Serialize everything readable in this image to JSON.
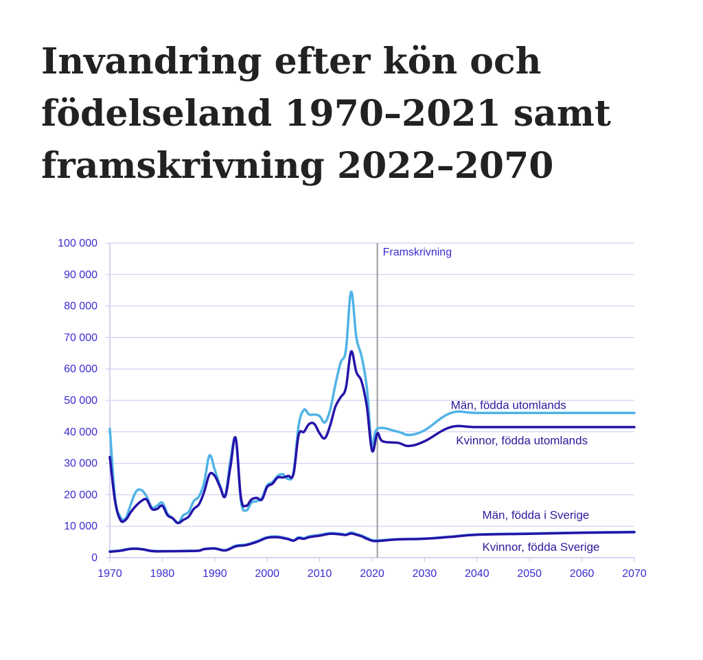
{
  "title_lines": [
    "Invandring efter kön och",
    "födelseland 1970–2021 samt",
    "framskrivning 2022–2070"
  ],
  "colors": {
    "light_blue": "#4fb3e6",
    "dark_blue": "#2414a8",
    "grid": "#c9c3ee",
    "axis_text": "#3a2bd0",
    "divider": "#9a9a9a"
  },
  "chart_data": {
    "type": "line",
    "title": "Invandring efter kön och födelseland 1970–2021 samt framskrivning 2022–2070",
    "xlabel": "",
    "ylabel": "",
    "xlim": [
      1970,
      2070
    ],
    "ylim": [
      0,
      100000
    ],
    "x_ticks": [
      "1970",
      "1980",
      "1990",
      "2000",
      "2010",
      "2020",
      "2030",
      "2040",
      "2050",
      "2060",
      "2070"
    ],
    "y_ticks": [
      "0",
      "10 000",
      "20 000",
      "30 000",
      "40 000",
      "50 000",
      "60 000",
      "70 000",
      "80 000",
      "90 000",
      "100 000"
    ],
    "grid": "horizontal",
    "projection_start": 2021,
    "projection_label": "Framskrivning",
    "series": [
      {
        "name": "Män, födda utomlands",
        "color": "light_blue",
        "points": [
          [
            1970,
            41000
          ],
          [
            1971,
            19000
          ],
          [
            1972,
            13000
          ],
          [
            1973,
            12500
          ],
          [
            1974,
            17000
          ],
          [
            1975,
            21000
          ],
          [
            1976,
            21500
          ],
          [
            1977,
            19500
          ],
          [
            1978,
            16000
          ],
          [
            1979,
            16500
          ],
          [
            1980,
            17500
          ],
          [
            1981,
            14000
          ],
          [
            1982,
            12500
          ],
          [
            1983,
            11000
          ],
          [
            1984,
            13500
          ],
          [
            1985,
            14500
          ],
          [
            1986,
            18000
          ],
          [
            1987,
            19500
          ],
          [
            1988,
            24000
          ],
          [
            1989,
            32500
          ],
          [
            1990,
            28000
          ],
          [
            1991,
            23000
          ],
          [
            1992,
            20000
          ],
          [
            1993,
            31000
          ],
          [
            1994,
            37500
          ],
          [
            1995,
            18000
          ],
          [
            1996,
            15000
          ],
          [
            1997,
            17500
          ],
          [
            1998,
            18000
          ],
          [
            1999,
            19000
          ],
          [
            2000,
            23000
          ],
          [
            2001,
            24000
          ],
          [
            2002,
            26000
          ],
          [
            2003,
            26500
          ],
          [
            2004,
            25000
          ],
          [
            2005,
            27000
          ],
          [
            2006,
            42000
          ],
          [
            2007,
            47000
          ],
          [
            2008,
            45500
          ],
          [
            2009,
            45500
          ],
          [
            2010,
            45000
          ],
          [
            2011,
            43000
          ],
          [
            2012,
            47000
          ],
          [
            2013,
            55000
          ],
          [
            2014,
            62000
          ],
          [
            2015,
            66000
          ],
          [
            2016,
            84500
          ],
          [
            2017,
            70000
          ],
          [
            2018,
            64000
          ],
          [
            2019,
            54000
          ],
          [
            2020,
            35000
          ],
          [
            2021,
            41000
          ],
          [
            2025,
            40000
          ],
          [
            2027,
            39000
          ],
          [
            2030,
            40500
          ],
          [
            2035,
            46000
          ],
          [
            2040,
            46000
          ],
          [
            2050,
            46000
          ],
          [
            2060,
            46000
          ],
          [
            2070,
            46000
          ]
        ]
      },
      {
        "name": "Kvinnor, födda utomlands",
        "color": "dark_blue",
        "points": [
          [
            1970,
            32000
          ],
          [
            1971,
            18000
          ],
          [
            1972,
            12000
          ],
          [
            1973,
            12000
          ],
          [
            1974,
            14500
          ],
          [
            1975,
            16500
          ],
          [
            1976,
            18000
          ],
          [
            1977,
            18500
          ],
          [
            1978,
            15500
          ],
          [
            1979,
            15500
          ],
          [
            1980,
            16500
          ],
          [
            1981,
            13500
          ],
          [
            1982,
            12500
          ],
          [
            1983,
            11000
          ],
          [
            1984,
            12000
          ],
          [
            1985,
            13000
          ],
          [
            1986,
            15500
          ],
          [
            1987,
            17000
          ],
          [
            1988,
            21000
          ],
          [
            1989,
            26500
          ],
          [
            1990,
            26000
          ],
          [
            1991,
            22500
          ],
          [
            1992,
            19500
          ],
          [
            1993,
            29000
          ],
          [
            1994,
            38000
          ],
          [
            1995,
            19000
          ],
          [
            1996,
            16500
          ],
          [
            1997,
            18500
          ],
          [
            1998,
            19000
          ],
          [
            1999,
            18500
          ],
          [
            2000,
            22500
          ],
          [
            2001,
            23500
          ],
          [
            2002,
            25500
          ],
          [
            2003,
            25500
          ],
          [
            2004,
            26000
          ],
          [
            2005,
            26500
          ],
          [
            2006,
            39000
          ],
          [
            2007,
            40000
          ],
          [
            2008,
            42500
          ],
          [
            2009,
            42500
          ],
          [
            2010,
            39500
          ],
          [
            2011,
            38000
          ],
          [
            2012,
            42000
          ],
          [
            2013,
            48000
          ],
          [
            2014,
            51000
          ],
          [
            2015,
            54000
          ],
          [
            2016,
            65500
          ],
          [
            2017,
            59000
          ],
          [
            2018,
            56000
          ],
          [
            2019,
            48000
          ],
          [
            2020,
            34000
          ],
          [
            2021,
            39500
          ],
          [
            2022,
            37000
          ],
          [
            2025,
            36500
          ],
          [
            2027,
            35500
          ],
          [
            2030,
            37000
          ],
          [
            2035,
            41500
          ],
          [
            2040,
            41500
          ],
          [
            2050,
            41500
          ],
          [
            2060,
            41500
          ],
          [
            2070,
            41500
          ]
        ]
      },
      {
        "name": "Män, födda i Sverige",
        "color": "light_blue",
        "points": [
          [
            1970,
            2000
          ],
          [
            1972,
            2300
          ],
          [
            1974,
            2900
          ],
          [
            1976,
            2800
          ],
          [
            1978,
            2200
          ],
          [
            1980,
            2100
          ],
          [
            1985,
            2200
          ],
          [
            1987,
            2300
          ],
          [
            1988,
            2800
          ],
          [
            1990,
            3000
          ],
          [
            1992,
            2400
          ],
          [
            1994,
            3800
          ],
          [
            1996,
            4200
          ],
          [
            1998,
            5200
          ],
          [
            2000,
            6500
          ],
          [
            2002,
            6700
          ],
          [
            2004,
            6000
          ],
          [
            2005,
            5500
          ],
          [
            2006,
            6500
          ],
          [
            2007,
            6200
          ],
          [
            2008,
            6800
          ],
          [
            2010,
            7200
          ],
          [
            2012,
            7800
          ],
          [
            2014,
            7600
          ],
          [
            2015,
            7400
          ],
          [
            2016,
            8000
          ],
          [
            2017,
            7500
          ],
          [
            2018,
            7000
          ],
          [
            2019,
            6300
          ],
          [
            2020,
            5600
          ],
          [
            2021,
            5500
          ],
          [
            2025,
            5900
          ],
          [
            2030,
            6100
          ],
          [
            2035,
            6700
          ],
          [
            2040,
            7400
          ],
          [
            2050,
            7700
          ],
          [
            2060,
            8000
          ],
          [
            2070,
            8200
          ]
        ]
      },
      {
        "name": "Kvinnor, födda Sverige",
        "color": "dark_blue",
        "points": [
          [
            1970,
            1900
          ],
          [
            1972,
            2200
          ],
          [
            1974,
            2800
          ],
          [
            1976,
            2700
          ],
          [
            1978,
            2100
          ],
          [
            1980,
            2000
          ],
          [
            1985,
            2100
          ],
          [
            1987,
            2200
          ],
          [
            1988,
            2700
          ],
          [
            1990,
            2900
          ],
          [
            1992,
            2300
          ],
          [
            1994,
            3600
          ],
          [
            1996,
            4000
          ],
          [
            1998,
            5000
          ],
          [
            2000,
            6300
          ],
          [
            2002,
            6500
          ],
          [
            2004,
            5900
          ],
          [
            2005,
            5400
          ],
          [
            2006,
            6200
          ],
          [
            2007,
            6000
          ],
          [
            2008,
            6500
          ],
          [
            2010,
            7000
          ],
          [
            2012,
            7600
          ],
          [
            2014,
            7400
          ],
          [
            2015,
            7200
          ],
          [
            2016,
            7700
          ],
          [
            2017,
            7300
          ],
          [
            2018,
            6800
          ],
          [
            2019,
            6000
          ],
          [
            2020,
            5400
          ],
          [
            2021,
            5300
          ],
          [
            2025,
            5800
          ],
          [
            2030,
            6000
          ],
          [
            2035,
            6600
          ],
          [
            2040,
            7300
          ],
          [
            2050,
            7600
          ],
          [
            2060,
            7900
          ],
          [
            2070,
            8100
          ]
        ]
      }
    ],
    "annotations": [
      {
        "text": "Män, födda utomlands",
        "x": 2035,
        "y": 46000,
        "series": 0
      },
      {
        "text": "Kvinnor, födda utomlands",
        "x": 2036,
        "y": 41500,
        "series": 1
      },
      {
        "text": "Män, födda i Sverige",
        "x": 2041,
        "y": 8200,
        "series": 2
      },
      {
        "text": "Kvinnor, födda Sverige",
        "x": 2041,
        "y": 8100,
        "series": 3
      }
    ]
  }
}
